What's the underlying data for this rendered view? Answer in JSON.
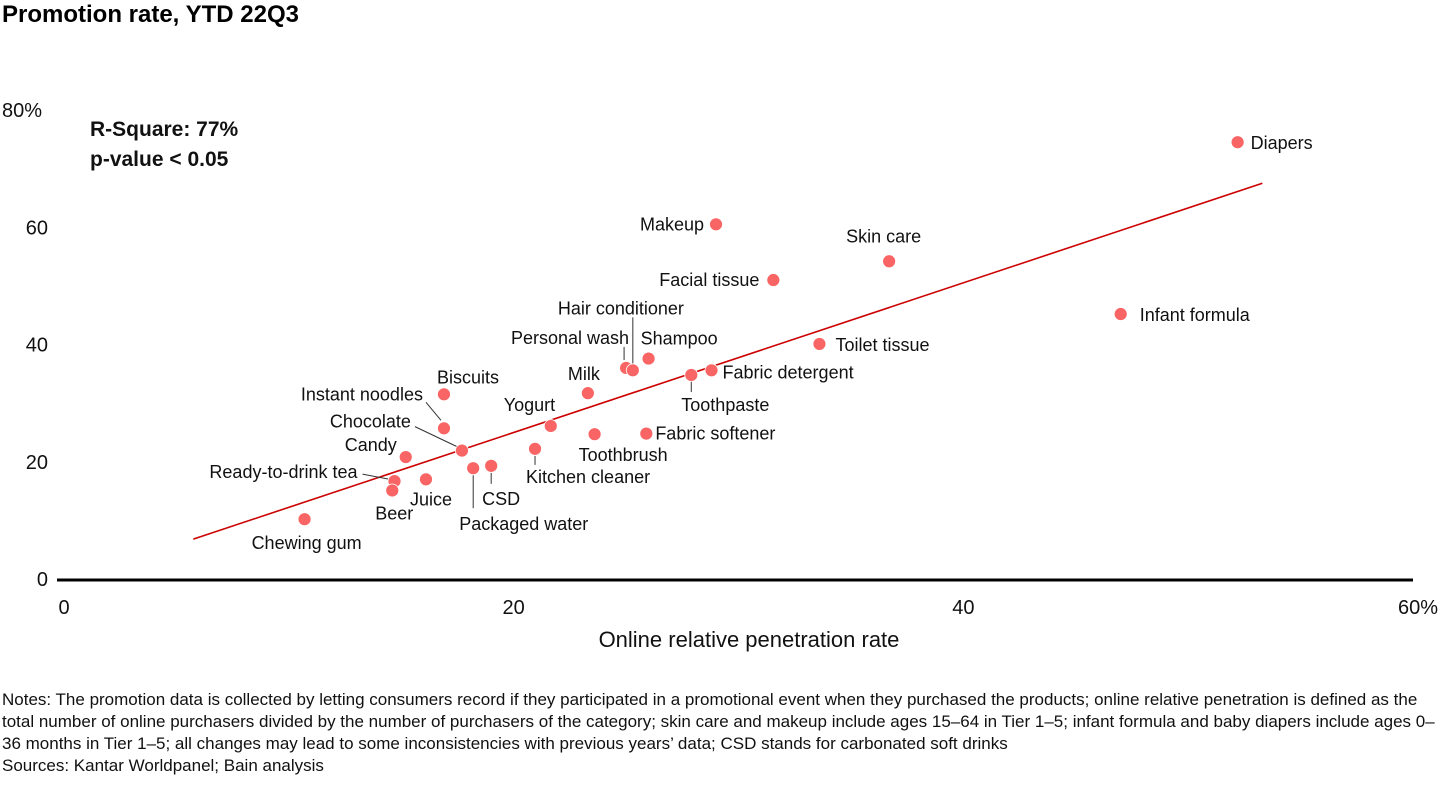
{
  "chart_data": {
    "type": "scatter",
    "title": "Promotion rate, YTD 22Q3",
    "xlabel": "Online relative penetration rate",
    "ylabel": "Promotion rate",
    "xlim": [
      0,
      60
    ],
    "ylim": [
      0,
      80
    ],
    "x_ticks": [
      {
        "value": 0,
        "label": "0"
      },
      {
        "value": 20,
        "label": "20"
      },
      {
        "value": 40,
        "label": "40"
      },
      {
        "value": 60,
        "label": "60%"
      }
    ],
    "y_ticks": [
      {
        "value": 0,
        "label": "0"
      },
      {
        "value": 20,
        "label": "20"
      },
      {
        "value": 40,
        "label": "40"
      },
      {
        "value": 60,
        "label": "60"
      },
      {
        "value": 80,
        "label": "80%"
      }
    ],
    "grid": false,
    "annotations": {
      "r_square": "R-Square: 77%",
      "p_value": "p-value < 0.05"
    },
    "trendline": {
      "start": {
        "x": 5.75,
        "y": 6.8
      },
      "end": {
        "x": 53.3,
        "y": 67.5
      },
      "color": "#CC0000"
    },
    "point_color": "#F96464",
    "points": [
      {
        "name": "Chewing gum",
        "x": 10.7,
        "y": 10.2
      },
      {
        "name": "Ready-to-drink tea",
        "x": 14.7,
        "y": 16.7
      },
      {
        "name": "Beer",
        "x": 14.6,
        "y": 15.1
      },
      {
        "name": "Candy",
        "x": 15.2,
        "y": 20.8
      },
      {
        "name": "Juice",
        "x": 16.1,
        "y": 17.0
      },
      {
        "name": "Biscuits",
        "x": 16.9,
        "y": 31.5
      },
      {
        "name": "Instant noodles",
        "x": 16.9,
        "y": 25.7
      },
      {
        "name": "Chocolate",
        "x": 17.7,
        "y": 21.9
      },
      {
        "name": "Packaged water",
        "x": 18.2,
        "y": 18.9
      },
      {
        "name": "CSD",
        "x": 19.0,
        "y": 19.3
      },
      {
        "name": "Kitchen cleaner",
        "x": 20.95,
        "y": 22.2
      },
      {
        "name": "Yogurt",
        "x": 21.65,
        "y": 26.1
      },
      {
        "name": "Milk",
        "x": 23.3,
        "y": 31.7
      },
      {
        "name": "Toothbrush",
        "x": 23.6,
        "y": 24.7
      },
      {
        "name": "Personal wash",
        "x": 25.0,
        "y": 36.0
      },
      {
        "name": "Hair conditioner",
        "x": 25.3,
        "y": 35.6
      },
      {
        "name": "Shampoo",
        "x": 26.0,
        "y": 37.6
      },
      {
        "name": "Fabric softener",
        "x": 25.9,
        "y": 24.8
      },
      {
        "name": "Toothpaste",
        "x": 27.9,
        "y": 34.8
      },
      {
        "name": "Fabric detergent",
        "x": 28.8,
        "y": 35.6
      },
      {
        "name": "Makeup",
        "x": 29.0,
        "y": 60.5
      },
      {
        "name": "Facial tissue",
        "x": 31.55,
        "y": 51.0
      },
      {
        "name": "Toilet tissue",
        "x": 33.6,
        "y": 40.1
      },
      {
        "name": "Skin care",
        "x": 36.7,
        "y": 54.2
      },
      {
        "name": "Infant formula",
        "x": 47.0,
        "y": 45.2
      },
      {
        "name": "Diapers",
        "x": 52.2,
        "y": 74.5
      }
    ]
  },
  "notes": {
    "notes_text": "Notes: The promotion data is collected by letting consumers record if they participated in a promotional event when they purchased the products; online relative penetration is defined as the total number of online purchasers divided by the number of purchasers of the category; skin care and makeup include ages 15–64 in Tier 1–5; infant formula and baby diapers include ages 0–36 months in Tier 1–5; all changes may lead to some inconsistencies with previous years’ data; CSD stands for carbonated soft drinks",
    "sources_text": "Sources: Kantar Worldpanel; Bain analysis"
  }
}
